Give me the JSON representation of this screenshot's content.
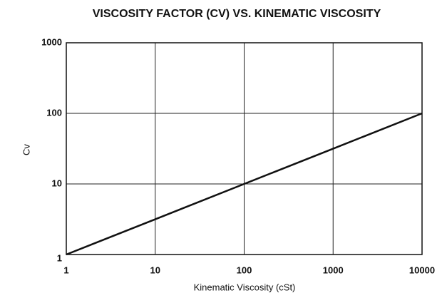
{
  "chart_data": {
    "type": "line",
    "title": "VISCOSITY FACTOR (CV) VS. KINEMATIC VISCOSITY",
    "xlabel": "Kinematic Viscosity (cSt)",
    "ylabel": "Cv",
    "x": [
      1,
      10,
      100,
      1000,
      10000
    ],
    "values": [
      1,
      3.16,
      10,
      31.6,
      100
    ],
    "color": "#111111",
    "xlim": [
      1,
      10000
    ],
    "xticks": [
      1,
      10,
      100,
      1000,
      10000
    ],
    "ylim": [
      1,
      1000
    ],
    "yticks": [
      1,
      10,
      100,
      1000
    ],
    "xscale": "log",
    "yscale": "log",
    "grid": true
  }
}
